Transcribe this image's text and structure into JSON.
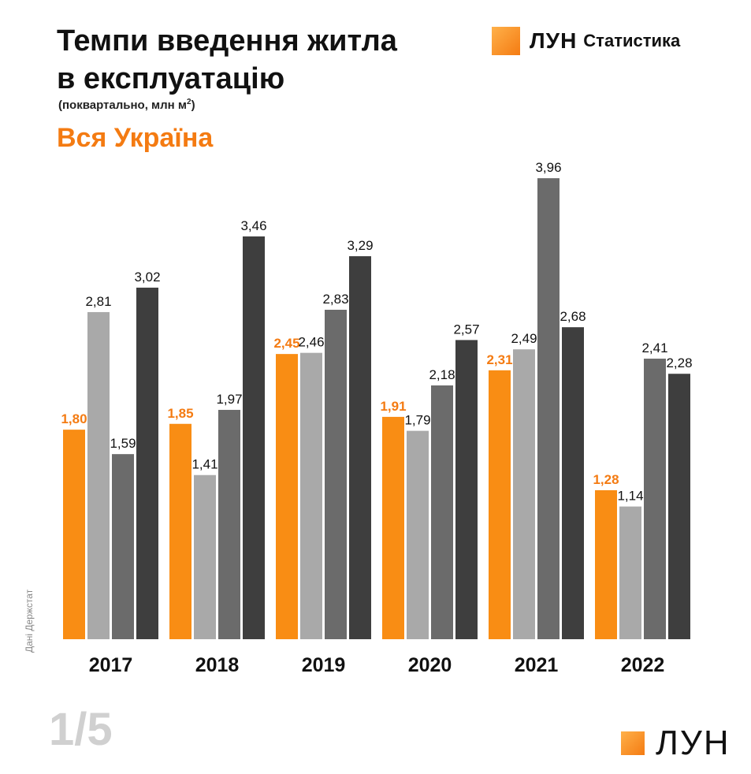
{
  "title_line1": "Темпи введення житла",
  "title_line2": "в експлуатацію",
  "unit_prefix": "(поквартально, млн м",
  "unit_sup": "2",
  "unit_suffix": ")",
  "region": "Вся Україна",
  "brand": {
    "word": "ЛУН",
    "sub": "Статистика",
    "bottom_word": "ЛУН"
  },
  "source": "Дані Держстат",
  "pager": "1/5",
  "colors": {
    "accent": "#f47b12",
    "q1": "#f98d14",
    "q2": "#a9a9a9",
    "q3": "#6b6b6b",
    "q4": "#3e3e3e"
  },
  "chart_data": {
    "type": "bar",
    "categories": [
      "2017",
      "2018",
      "2019",
      "2020",
      "2021",
      "2022"
    ],
    "series": [
      {
        "values": [
          1.8,
          1.85,
          2.45,
          1.91,
          2.31,
          1.28
        ],
        "labels": [
          "1,80",
          "1,85",
          "2,45",
          "1,91",
          "2,31",
          "1,28"
        ]
      },
      {
        "values": [
          2.81,
          1.41,
          2.46,
          1.79,
          2.49,
          1.14
        ],
        "labels": [
          "2,81",
          "1,41",
          "2,46",
          "1,79",
          "2,49",
          "1,14"
        ]
      },
      {
        "values": [
          1.59,
          1.97,
          2.83,
          2.18,
          3.96,
          2.41
        ],
        "labels": [
          "1,59",
          "1,97",
          "2,83",
          "2,18",
          "3,96",
          "2,41"
        ]
      },
      {
        "values": [
          3.02,
          3.46,
          3.29,
          2.57,
          2.68,
          2.28
        ],
        "labels": [
          "3,02",
          "3,46",
          "3,29",
          "2,57",
          "2,68",
          "2,28"
        ]
      }
    ],
    "ylim": [
      0,
      3.96
    ],
    "grid": false,
    "legend": "none"
  }
}
